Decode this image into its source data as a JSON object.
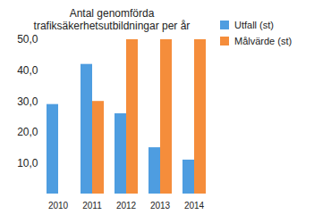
{
  "chart_data": {
    "type": "bar",
    "title": "Antal genomförda trafiksäkerhetsutbildningar per år",
    "categories": [
      "2010",
      "2011",
      "2012",
      "2013",
      "2014"
    ],
    "series": [
      {
        "name": "Utfall (st)",
        "color": "#4e9de0",
        "values": [
          29,
          42,
          26,
          15,
          11
        ]
      },
      {
        "name": "Målvärde (st)",
        "color": "#f58d3b",
        "values": [
          null,
          30,
          50,
          50,
          50
        ]
      }
    ],
    "ylim": [
      0,
      50
    ],
    "yticks": [
      {
        "value": 10,
        "label": "10,0"
      },
      {
        "value": 20,
        "label": "20,0"
      },
      {
        "value": 30,
        "label": "30,0"
      },
      {
        "value": 40,
        "label": "40,0"
      },
      {
        "value": 50,
        "label": "50,0"
      }
    ],
    "grid": false,
    "legend": "top-right"
  }
}
